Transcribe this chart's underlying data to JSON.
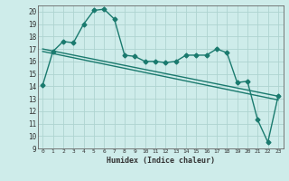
{
  "xlabel": "Humidex (Indice chaleur)",
  "background_color": "#ceecea",
  "grid_color": "#aed4d0",
  "line_color": "#1a7a6e",
  "xlim": [
    -0.5,
    23.5
  ],
  "ylim": [
    9,
    20.5
  ],
  "yticks": [
    9,
    10,
    11,
    12,
    13,
    14,
    15,
    16,
    17,
    18,
    19,
    20
  ],
  "xticks": [
    0,
    1,
    2,
    3,
    4,
    5,
    6,
    7,
    8,
    9,
    10,
    11,
    12,
    13,
    14,
    15,
    16,
    17,
    18,
    19,
    20,
    21,
    22,
    23
  ],
  "series1_x": [
    0,
    1,
    2,
    3,
    4,
    5,
    6,
    7,
    8,
    9,
    10,
    11,
    12,
    13,
    14,
    15,
    16,
    17,
    18,
    19,
    20,
    21,
    22,
    23
  ],
  "series1_y": [
    14.1,
    16.8,
    17.6,
    17.5,
    19.0,
    20.1,
    20.2,
    19.4,
    16.5,
    16.4,
    16.0,
    16.0,
    15.9,
    16.0,
    16.5,
    16.5,
    16.5,
    17.0,
    16.7,
    14.3,
    14.4,
    11.3,
    9.5,
    13.2
  ],
  "series2_x": [
    0,
    23
  ],
  "series2_y": [
    17.0,
    13.2
  ],
  "series3_x": [
    0,
    23
  ],
  "series3_y": [
    16.8,
    12.9
  ],
  "marker_size": 2.5,
  "linewidth": 1.0
}
